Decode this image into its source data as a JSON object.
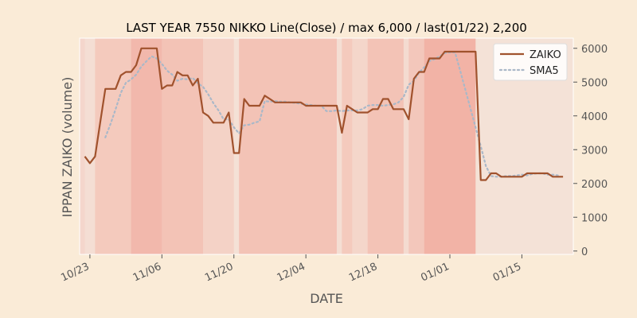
{
  "chart_data": {
    "type": "line",
    "title": "LAST YEAR 7550 NIKKO Line(Close) / max 6,000 / last(01/22) 2,200",
    "xlabel": "DATE",
    "ylabel": "IPPAN ZAIKO (volume)",
    "ylim": [
      -100,
      6300
    ],
    "yticks": [
      0,
      1000,
      2000,
      3000,
      4000,
      5000,
      6000
    ],
    "xrange": [
      -1,
      95
    ],
    "xticks": [
      {
        "label": "10/23",
        "x": 1
      },
      {
        "label": "11/06",
        "x": 15
      },
      {
        "label": "11/20",
        "x": 29
      },
      {
        "label": "12/04",
        "x": 43
      },
      {
        "label": "12/18",
        "x": 57
      },
      {
        "label": "01/01",
        "x": 71
      },
      {
        "label": "01/15",
        "x": 85
      }
    ],
    "grid": false,
    "legend_position": "top-right",
    "series": [
      {
        "name": "ZAIKO",
        "color": "#a0522d",
        "style": "solid",
        "values": [
          2800,
          2600,
          2800,
          3800,
          4800,
          4800,
          4800,
          5200,
          5300,
          5300,
          5500,
          6000,
          6000,
          6000,
          6000,
          4800,
          4900,
          4900,
          5300,
          5200,
          5200,
          4900,
          5100,
          4100,
          4000,
          3800,
          3800,
          3800,
          4100,
          2900,
          2900,
          4500,
          4300,
          4300,
          4300,
          4600,
          4500,
          4400,
          4400,
          4400,
          4400,
          4400,
          4400,
          4300,
          4300,
          4300,
          4300,
          4300,
          4300,
          4300,
          3500,
          4300,
          4200,
          4100,
          4100,
          4100,
          4200,
          4200,
          4500,
          4500,
          4200,
          4200,
          4200,
          3900,
          5100,
          5300,
          5300,
          5700,
          5700,
          5700,
          5900,
          5900,
          5900,
          5900,
          5900,
          5900,
          5900,
          2100,
          2100,
          2300,
          2300,
          2200,
          2200,
          2200,
          2200,
          2200,
          2300,
          2300,
          2300,
          2300,
          2300,
          2200,
          2200,
          2200
        ]
      },
      {
        "name": "SMA5",
        "color": "#aab8c8",
        "style": "dotted",
        "start_index": 4,
        "values": [
          3360,
          3760,
          4200,
          4680,
          4980,
          5080,
          5220,
          5460,
          5620,
          5760,
          5700,
          5540,
          5340,
          5220,
          5040,
          5100,
          5080,
          5120,
          4960,
          4860,
          4640,
          4380,
          4160,
          3900,
          3900,
          3660,
          3480,
          3720,
          3740,
          3800,
          3840,
          4440,
          4420,
          4440,
          4420,
          4420,
          4400,
          4380,
          4360,
          4340,
          4320,
          4300,
          4300,
          4140,
          4140,
          4160,
          4140,
          4160,
          4160,
          4160,
          4200,
          4300,
          4320,
          4320,
          4300,
          4320,
          4340,
          4400,
          4560,
          4920,
          5040,
          5280,
          5440,
          5620,
          5680,
          5760,
          5860,
          5880,
          5880,
          5340,
          4780,
          4220,
          3660,
          3100,
          2520,
          2220,
          2200,
          2200,
          2220,
          2220,
          2240,
          2260,
          2240,
          2280,
          2300,
          2300,
          2260,
          2260,
          2240
        ]
      }
    ],
    "shaded_bands": [
      {
        "from": -1,
        "to": 0,
        "strength": 0.15
      },
      {
        "from": 0,
        "to": 2,
        "strength": 0.07
      },
      {
        "from": 2,
        "to": 9,
        "strength": 0.28
      },
      {
        "from": 9,
        "to": 15,
        "strength": 0.45
      },
      {
        "from": 15,
        "to": 23,
        "strength": 0.35
      },
      {
        "from": 23,
        "to": 29,
        "strength": 0.2
      },
      {
        "from": 29,
        "to": 30,
        "strength": 0.05
      },
      {
        "from": 30,
        "to": 49,
        "strength": 0.35
      },
      {
        "from": 49,
        "to": 50,
        "strength": 0.08
      },
      {
        "from": 50,
        "to": 52,
        "strength": 0.28
      },
      {
        "from": 52,
        "to": 55,
        "strength": 0.16
      },
      {
        "from": 55,
        "to": 62,
        "strength": 0.35
      },
      {
        "from": 62,
        "to": 63,
        "strength": 0.1
      },
      {
        "from": 63,
        "to": 66,
        "strength": 0.3
      },
      {
        "from": 66,
        "to": 76,
        "strength": 0.5
      },
      {
        "from": 76,
        "to": 95,
        "strength": 0.04
      }
    ]
  },
  "colors": {
    "page_background": "#faebd7",
    "plot_background": "#f5e6dc",
    "band_color": "#f08070",
    "axis_color": "#555555",
    "text_color": "#000000"
  }
}
